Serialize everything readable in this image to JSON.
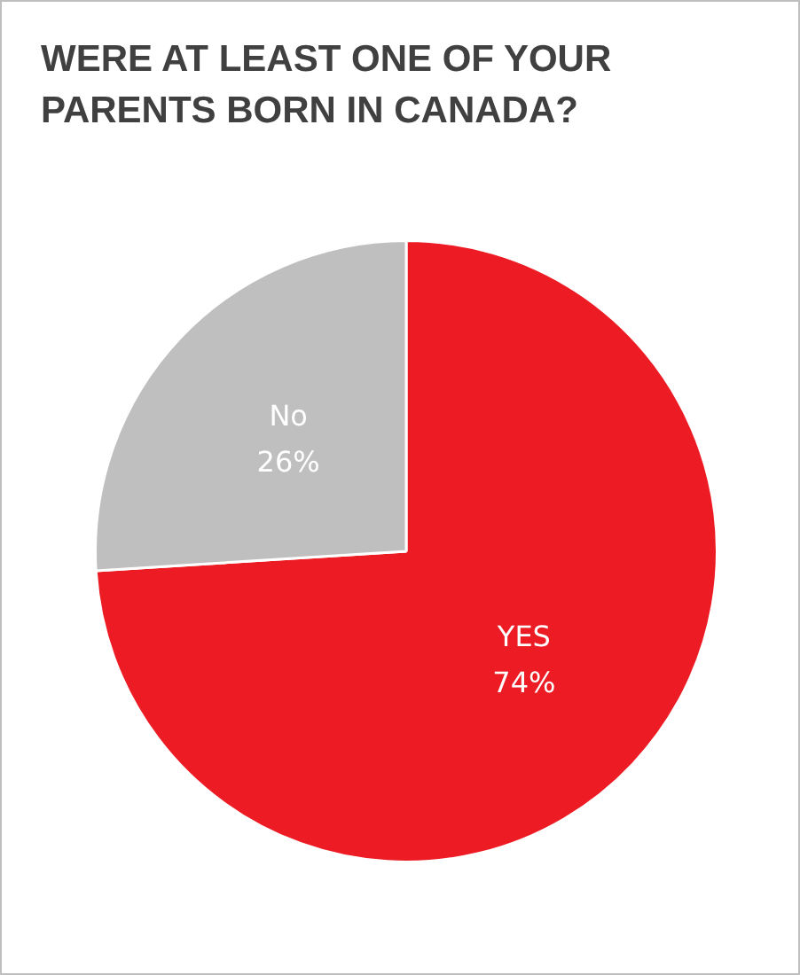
{
  "chart_data": {
    "type": "pie",
    "title": "WERE AT LEAST ONE OF YOUR PARENTS BORN IN CANADA?",
    "categories": [
      "YES",
      "No"
    ],
    "values": [
      74,
      26
    ],
    "value_labels": [
      "74%",
      "26%"
    ],
    "colors": [
      "#ed1c24",
      "#bfbfbf"
    ],
    "legend": false
  }
}
